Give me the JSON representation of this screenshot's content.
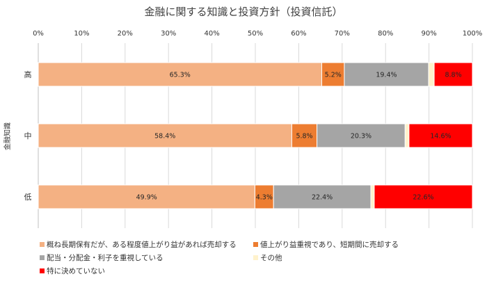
{
  "chart_data": {
    "type": "bar",
    "orientation": "horizontal",
    "stacked": true,
    "title": "金融に関する知識と投資方針（投資信託）",
    "xlabel": "",
    "ylabel": "金融知識",
    "xlim": [
      0,
      100
    ],
    "x_ticks": [
      "0%",
      "10%",
      "20%",
      "30%",
      "40%",
      "50%",
      "60%",
      "70%",
      "80%",
      "90%",
      "100%"
    ],
    "x_axis_position": "top",
    "categories": [
      "高",
      "中",
      "低"
    ],
    "series": [
      {
        "name": "概ね長期保有だが、ある程度値上がり益があれば売却する",
        "color": "#F4B183",
        "values": [
          65.3,
          58.4,
          49.9
        ],
        "labels": [
          "65.3%",
          "58.4%",
          "49.9%"
        ]
      },
      {
        "name": "値上がり益重視であり、短期間に売却する",
        "color": "#ED7D31",
        "values": [
          5.2,
          5.8,
          4.3
        ],
        "labels": [
          "5.2%",
          "5.8%",
          "4.3%"
        ]
      },
      {
        "name": "配当・分配金・利子を重視している",
        "color": "#A5A5A5",
        "values": [
          19.4,
          20.3,
          22.4
        ],
        "labels": [
          "19.4%",
          "20.3%",
          "22.4%"
        ]
      },
      {
        "name": "その他",
        "color": "#FFF2CC",
        "values": [
          1.3,
          0.9,
          0.8
        ],
        "labels": [
          "",
          "",
          ""
        ]
      },
      {
        "name": "特に決めていない",
        "color": "#FF0000",
        "values": [
          8.8,
          14.6,
          22.6
        ],
        "labels": [
          "8.8%",
          "14.6%",
          "22.6%"
        ]
      }
    ],
    "grid": true,
    "legend_position": "bottom-left"
  }
}
